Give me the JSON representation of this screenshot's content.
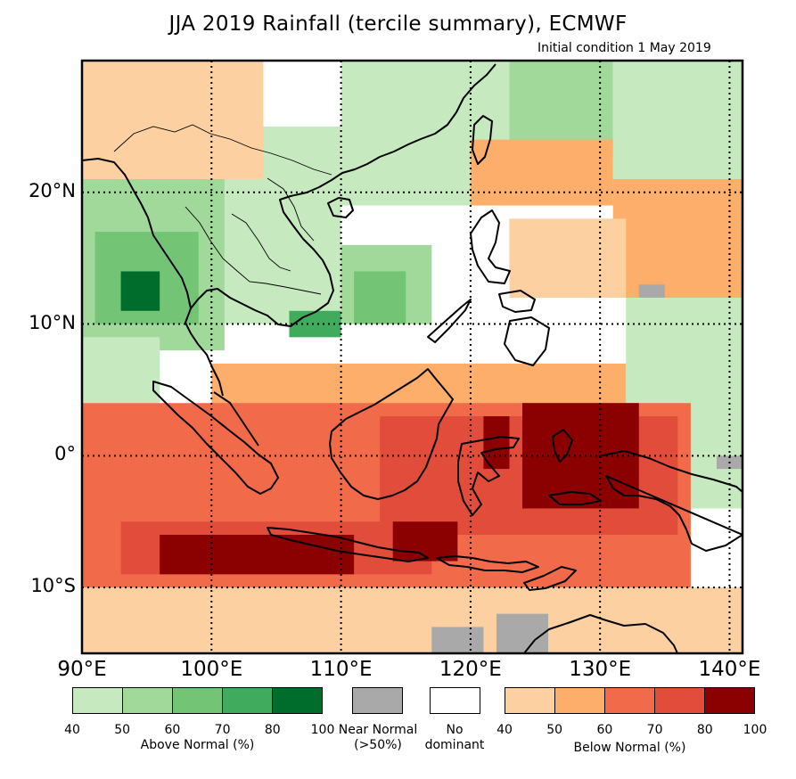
{
  "title": "JJA 2019 Rainfall (tercile summary), ECMWF",
  "subtitle": "Initial condition 1 May 2019",
  "map": {
    "lon_range": [
      90,
      141
    ],
    "lat_range": [
      -15,
      30
    ],
    "lat_labels": [
      {
        "lat": 20,
        "text": "20°N"
      },
      {
        "lat": 10,
        "text": "10°N"
      },
      {
        "lat": 0,
        "text": "0°"
      },
      {
        "lat": -10,
        "text": "10°S"
      }
    ],
    "lon_labels": [
      {
        "lon": 90,
        "text": "90°E"
      },
      {
        "lon": 100,
        "text": "100°E"
      },
      {
        "lon": 110,
        "text": "110°E"
      },
      {
        "lon": 120,
        "text": "120°E"
      },
      {
        "lon": 130,
        "text": "130°E"
      },
      {
        "lon": 140,
        "text": "140°E"
      }
    ],
    "gridlines": {
      "lons": [
        90,
        100,
        110,
        120,
        130,
        140
      ],
      "lats": [
        20,
        10,
        0,
        -10
      ]
    },
    "regions": [
      {
        "category": "above",
        "level": 1,
        "lon": [
          97,
          110
        ],
        "lat": [
          10,
          25
        ]
      },
      {
        "category": "above",
        "level": 2,
        "lon": [
          90,
          101
        ],
        "lat": [
          8,
          21
        ]
      },
      {
        "category": "above",
        "level": 3,
        "lon": [
          91,
          99
        ],
        "lat": [
          10,
          17
        ]
      },
      {
        "category": "above",
        "level": 5,
        "lon": [
          93,
          96
        ],
        "lat": [
          11,
          14
        ]
      },
      {
        "category": "above",
        "level": 2,
        "lon": [
          110,
          117
        ],
        "lat": [
          10,
          16
        ]
      },
      {
        "category": "above",
        "level": 3,
        "lon": [
          111,
          115
        ],
        "lat": [
          10,
          14
        ]
      },
      {
        "category": "above",
        "level": 4,
        "lon": [
          106,
          110
        ],
        "lat": [
          9,
          11
        ]
      },
      {
        "category": "above",
        "level": 1,
        "lon": [
          110,
          123
        ],
        "lat": [
          19,
          30
        ]
      },
      {
        "category": "above",
        "level": 2,
        "lon": [
          123,
          131
        ],
        "lat": [
          23,
          30
        ]
      },
      {
        "category": "above",
        "level": 1,
        "lon": [
          131,
          141
        ],
        "lat": [
          21,
          30
        ]
      },
      {
        "category": "above",
        "level": 1,
        "lon": [
          132,
          141
        ],
        "lat": [
          -4,
          12
        ]
      },
      {
        "category": "above",
        "level": 1,
        "lon": [
          90,
          96
        ],
        "lat": [
          4,
          9
        ]
      },
      {
        "category": "below",
        "level": 1,
        "lon": [
          90,
          104
        ],
        "lat": [
          21,
          30
        ]
      },
      {
        "category": "below",
        "level": 2,
        "lon": [
          120,
          131
        ],
        "lat": [
          19,
          24
        ]
      },
      {
        "category": "below",
        "level": 2,
        "lon": [
          131,
          141
        ],
        "lat": [
          12,
          21
        ]
      },
      {
        "category": "below",
        "level": 1,
        "lon": [
          123,
          132
        ],
        "lat": [
          12,
          18
        ]
      },
      {
        "category": "below",
        "level": 1,
        "lon": [
          90,
          141
        ],
        "lat": [
          -15,
          -10
        ]
      },
      {
        "category": "below",
        "level": 2,
        "lon": [
          100,
          132
        ],
        "lat": [
          -1,
          7
        ]
      },
      {
        "category": "below",
        "level": 3,
        "lon": [
          90,
          137
        ],
        "lat": [
          -10,
          4
        ]
      },
      {
        "category": "below",
        "level": 4,
        "lon": [
          93,
          117
        ],
        "lat": [
          -9,
          -5
        ]
      },
      {
        "category": "below",
        "level": 5,
        "lon": [
          96,
          111
        ],
        "lat": [
          -9,
          -6
        ]
      },
      {
        "category": "below",
        "level": 4,
        "lon": [
          113,
          136
        ],
        "lat": [
          -6,
          3
        ]
      },
      {
        "category": "below",
        "level": 5,
        "lon": [
          114,
          119
        ],
        "lat": [
          -8,
          -5
        ]
      },
      {
        "category": "below",
        "level": 5,
        "lon": [
          121,
          123
        ],
        "lat": [
          -1,
          3
        ]
      },
      {
        "category": "below",
        "level": 5,
        "lon": [
          124,
          133
        ],
        "lat": [
          -4,
          4
        ]
      },
      {
        "category": "near",
        "level": 0,
        "lon": [
          122,
          126
        ],
        "lat": [
          -15,
          -12
        ]
      },
      {
        "category": "near",
        "level": 0,
        "lon": [
          117,
          121
        ],
        "lat": [
          -15,
          -13
        ]
      },
      {
        "category": "near",
        "level": 0,
        "lon": [
          139,
          141
        ],
        "lat": [
          -1,
          0
        ]
      },
      {
        "category": "near",
        "level": 0,
        "lon": [
          133,
          135
        ],
        "lat": [
          12,
          13
        ]
      }
    ]
  },
  "legend": {
    "above": {
      "title": "Above Normal (%)",
      "colors": [
        "#c7e9c0",
        "#a1d99b",
        "#74c476",
        "#41ab5d",
        "#006d2c"
      ],
      "ticks": [
        "40",
        "50",
        "60",
        "70",
        "80",
        "100"
      ]
    },
    "near": {
      "title_line1": "Near Normal",
      "title_line2": "(>50%)",
      "color": "#a9a9a9"
    },
    "none": {
      "title_line1": "No",
      "title_line2": "dominant",
      "color": "#ffffff"
    },
    "below": {
      "title": "Below Normal (%)",
      "colors": [
        "#fdd0a2",
        "#fdae6b",
        "#f16b4a",
        "#e14d3a",
        "#8b0000"
      ],
      "ticks": [
        "40",
        "50",
        "60",
        "70",
        "80",
        "100"
      ]
    }
  }
}
